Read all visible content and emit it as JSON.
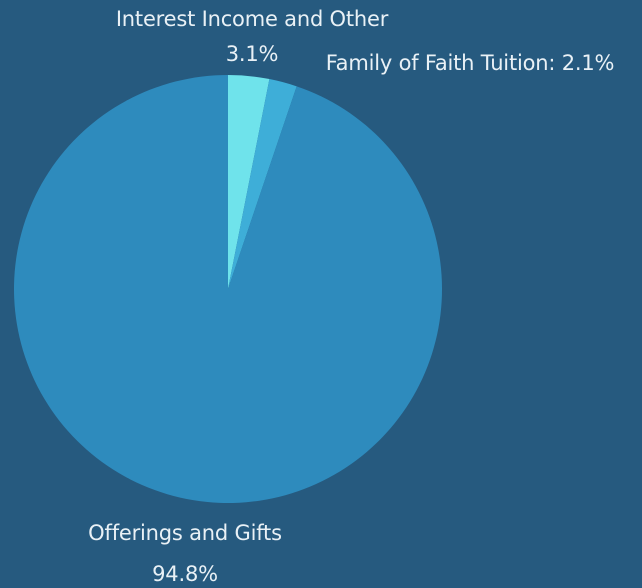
{
  "chart_data": {
    "type": "pie",
    "title": "",
    "slices": [
      {
        "label": "Interest Income and Other",
        "value_label": "3.1%",
        "value": 3.1,
        "color": "#6fe3eb"
      },
      {
        "label": "Family of Faith Tuition",
        "value_label": "2.1%",
        "value": 2.1,
        "color": "#3eaed8"
      },
      {
        "label": "Offerings and Gifts",
        "value_label": "94.8%",
        "value": 94.8,
        "color": "#2e8bbd"
      }
    ],
    "annotations": {
      "interest_name": "Interest Income and Other",
      "interest_pct": "3.1%",
      "tuition_text": "Family of Faith Tuition: 2.1%",
      "offerings_name": "Offerings and Gifts",
      "offerings_pct": "94.8%"
    },
    "legend": "none",
    "background_color": "#265a7f"
  }
}
